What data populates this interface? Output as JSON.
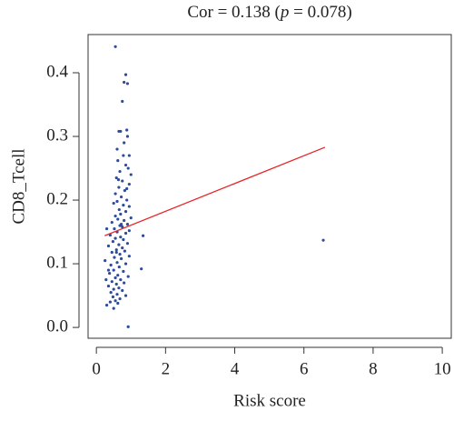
{
  "chart_data": {
    "type": "scatter",
    "title": [
      "Cor = 0.138 (",
      "p",
      " = 0.078)"
    ],
    "x_label": "Risk score",
    "y_label": "CD8_Tcell",
    "x": [
      0.55,
      0.85,
      0.8,
      0.9,
      0.75,
      0.88,
      0.7,
      0.65,
      0.9,
      0.8,
      0.6,
      0.78,
      0.62,
      0.85,
      0.92,
      1.0,
      0.68,
      0.58,
      0.75,
      0.95,
      0.65,
      0.82,
      0.55,
      0.72,
      0.88,
      0.6,
      0.5,
      0.78,
      0.95,
      0.66,
      0.85,
      0.7,
      0.55,
      1.0,
      0.62,
      0.8,
      0.45,
      0.9,
      0.68,
      0.75,
      0.52,
      0.95,
      0.6,
      0.85,
      0.4,
      1.35,
      0.7,
      0.55,
      0.78,
      0.48,
      0.9,
      0.65,
      0.35,
      0.75,
      0.58,
      0.82,
      0.45,
      0.68,
      0.95,
      0.52,
      0.72,
      0.25,
      0.6,
      0.85,
      0.42,
      0.66,
      1.3,
      0.5,
      0.78,
      0.38,
      0.62,
      0.92,
      0.55,
      0.7,
      0.45,
      0.8,
      0.58,
      0.35,
      0.65,
      0.5,
      0.75,
      0.42,
      0.6,
      0.85,
      0.48,
      0.68,
      0.55,
      0.4,
      0.62,
      0.3,
      0.5,
      0.92,
      6.56,
      0.3,
      0.35,
      0.28,
      0.95,
      0.88,
      0.72,
      0.64,
      0.58
    ],
    "y": [
      0.441,
      0.397,
      0.385,
      0.383,
      0.355,
      0.31,
      0.308,
      0.308,
      0.3,
      0.29,
      0.28,
      0.27,
      0.262,
      0.255,
      0.25,
      0.24,
      0.245,
      0.235,
      0.23,
      0.225,
      0.22,
      0.215,
      0.21,
      0.205,
      0.2,
      0.198,
      0.195,
      0.192,
      0.19,
      0.185,
      0.182,
      0.178,
      0.175,
      0.172,
      0.17,
      0.168,
      0.165,
      0.162,
      0.16,
      0.158,
      0.155,
      0.152,
      0.15,
      0.148,
      0.145,
      0.144,
      0.142,
      0.14,
      0.138,
      0.135,
      0.132,
      0.13,
      0.128,
      0.125,
      0.122,
      0.12,
      0.118,
      0.115,
      0.112,
      0.11,
      0.108,
      0.105,
      0.102,
      0.1,
      0.098,
      0.095,
      0.092,
      0.09,
      0.088,
      0.085,
      0.082,
      0.08,
      0.078,
      0.075,
      0.072,
      0.07,
      0.068,
      0.065,
      0.062,
      0.06,
      0.058,
      0.055,
      0.052,
      0.05,
      0.048,
      0.045,
      0.042,
      0.04,
      0.038,
      0.035,
      0.03,
      0.001,
      0.137,
      0.155,
      0.09,
      0.075,
      0.27,
      0.218,
      0.162,
      0.232,
      0.118
    ],
    "color": "#2f4b9c",
    "fit_line": {
      "x": [
        0.24,
        6.61
      ],
      "y": [
        0.144,
        0.283
      ],
      "color": "#e8262a"
    },
    "xlim": [
      -0.24,
      10.26
    ],
    "ylim": [
      -0.017,
      0.46
    ],
    "xticks": [
      0,
      2,
      4,
      6,
      8,
      10
    ],
    "yticks": [
      {
        "value": 0,
        "label": "0.0"
      },
      0.1,
      0.2,
      0.3,
      0.4
    ]
  }
}
